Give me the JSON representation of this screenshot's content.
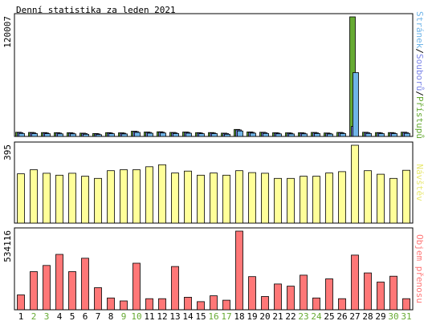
{
  "chart_data": {
    "type": "bar",
    "title": "Denní statistika za leden 2021",
    "categories": [
      "1",
      "2",
      "3",
      "4",
      "5",
      "6",
      "7",
      "8",
      "9",
      "10",
      "11",
      "12",
      "13",
      "14",
      "15",
      "16",
      "17",
      "18",
      "19",
      "20",
      "21",
      "22",
      "23",
      "24",
      "25",
      "26",
      "27",
      "28",
      "29",
      "30",
      "31"
    ],
    "weekend_days": [
      "2",
      "3",
      "9",
      "10",
      "16",
      "17",
      "23",
      "24",
      "30",
      "31"
    ],
    "colors": {
      "pages": "#6fb4e8",
      "files": "#7a84e8",
      "hits": "#66aa33",
      "visits": "#ffff99",
      "volume": "#ff7777",
      "weekday_label": "#000000",
      "weekend_label": "#66aa33",
      "frame": "#000000"
    },
    "panels": [
      {
        "name": "hits-pages-files",
        "ymax_label": "120007",
        "ylim": [
          0,
          120007
        ],
        "side_label_parts": [
          {
            "text": "Stránek",
            "color": "#6fb4e8"
          },
          {
            "text": "/",
            "color": "#000000"
          },
          {
            "text": "Souborů",
            "color": "#7a84e8"
          },
          {
            "text": "/",
            "color": "#000000"
          },
          {
            "text": "Přístupů",
            "color": "#66aa33"
          }
        ],
        "series": [
          {
            "name": "Přístupů",
            "color": "#66aa33",
            "values": [
              4200,
              4000,
              3900,
              3800,
              3700,
              3300,
              2900,
              3800,
              3600,
              5200,
              4400,
              4700,
              4000,
              4400,
              3800,
              3900,
              3300,
              7000,
              4500,
              4200,
              3700,
              3600,
              3700,
              4000,
              3500,
              4000,
              120007,
              4200,
              3900,
              3900,
              4300
            ]
          },
          {
            "name": "Souborů",
            "color": "#7a84e8",
            "values": [
              3800,
              3600,
              3500,
              3400,
              3300,
              2900,
              2500,
              3400,
              3200,
              4800,
              4000,
              4300,
              3600,
              4000,
              3400,
              3500,
              2900,
              6500,
              4100,
              3800,
              3300,
              3200,
              3300,
              3600,
              3100,
              3600,
              10000,
              3800,
              3500,
              3500,
              3900
            ]
          },
          {
            "name": "Stránek",
            "color": "#6fb4e8",
            "values": [
              3000,
              2800,
              2700,
              2600,
              2600,
              2200,
              1800,
              2700,
              2500,
              4000,
              3200,
              3500,
              2900,
              3200,
              2700,
              2800,
              2200,
              5500,
              3300,
              3000,
              2600,
              2500,
              2600,
              2900,
              2400,
              2900,
              64000,
              3000,
              2800,
              2800,
              3100
            ]
          }
        ]
      },
      {
        "name": "visits",
        "ymax_label": "395",
        "ylim": [
          0,
          395
        ],
        "side_label_parts": [
          {
            "text": "Návštěv",
            "color": "#e8e870"
          }
        ],
        "series": [
          {
            "name": "Návštěv",
            "color": "#ffff99",
            "values": [
              250,
              271,
              253,
              243,
              253,
              238,
              227,
              266,
              271,
              271,
              286,
              296,
              254,
              264,
              243,
              254,
              243,
              266,
              256,
              253,
              227,
              227,
              238,
              238,
              254,
              261,
              395,
              266,
              248,
              227,
              268
            ]
          }
        ]
      },
      {
        "name": "volume",
        "ymax_label": "534116",
        "ylim": [
          0,
          534116
        ],
        "side_label_parts": [
          {
            "text": "Objem přenosu",
            "color": "#ff7777"
          }
        ],
        "series": [
          {
            "name": "Objem přenosu",
            "color": "#ff7777",
            "values": [
              101000,
              259000,
              301000,
              376000,
              259000,
              350000,
              150000,
              80000,
              60000,
              316000,
              75000,
              75000,
              294000,
              85000,
              55000,
              95000,
              65000,
              534116,
              225000,
              90000,
              175000,
              160000,
              235000,
              80000,
              210000,
              75000,
              371000,
              250000,
              188000,
              228000,
              75000
            ]
          }
        ]
      }
    ]
  }
}
